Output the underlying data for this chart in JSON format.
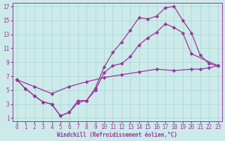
{
  "xlabel": "Windchill (Refroidissement éolien,°C)",
  "bg_color": "#cceaea",
  "line_color": "#993399",
  "grid_color": "#aad4d4",
  "xlim": [
    -0.5,
    23.5
  ],
  "ylim": [
    0.5,
    17.5
  ],
  "xticks": [
    0,
    1,
    2,
    3,
    4,
    5,
    6,
    7,
    8,
    9,
    10,
    11,
    12,
    13,
    14,
    15,
    16,
    17,
    18,
    19,
    20,
    21,
    22,
    23
  ],
  "yticks": [
    1,
    3,
    5,
    7,
    9,
    11,
    13,
    15,
    17
  ],
  "curve1_x": [
    0,
    1,
    2,
    3,
    4,
    5,
    6,
    7,
    8,
    9,
    10,
    11,
    12,
    13,
    14,
    15,
    16,
    17,
    18,
    19,
    20,
    21,
    22,
    23
  ],
  "curve1_y": [
    6.5,
    5.2,
    4.2,
    3.3,
    3.0,
    1.3,
    1.8,
    3.2,
    3.5,
    5.3,
    8.3,
    10.4,
    11.9,
    13.6,
    15.4,
    15.2,
    15.6,
    16.8,
    17.0,
    15.0,
    13.2,
    10.0,
    8.8,
    8.5
  ],
  "curve2_x": [
    0,
    1,
    2,
    3,
    4,
    5,
    6,
    7,
    8,
    9,
    10,
    11,
    12,
    13,
    14,
    15,
    16,
    17,
    18,
    19,
    20,
    23
  ],
  "curve2_y": [
    6.5,
    5.2,
    4.2,
    3.3,
    3.0,
    1.3,
    1.8,
    3.5,
    3.5,
    5.0,
    7.5,
    8.5,
    8.8,
    9.8,
    11.5,
    12.5,
    13.3,
    14.5,
    14.0,
    13.2,
    10.2,
    8.5
  ],
  "curve3_x": [
    0,
    2,
    4,
    6,
    8,
    10,
    12,
    14,
    16,
    18,
    20,
    21,
    22,
    23
  ],
  "curve3_y": [
    6.5,
    5.5,
    4.5,
    5.5,
    6.2,
    6.8,
    7.2,
    7.6,
    8.0,
    7.8,
    8.0,
    8.0,
    8.2,
    8.5
  ],
  "markersize": 2.5,
  "linewidth": 0.9,
  "tick_fontsize": 5.5,
  "xlabel_fontsize": 5.5
}
